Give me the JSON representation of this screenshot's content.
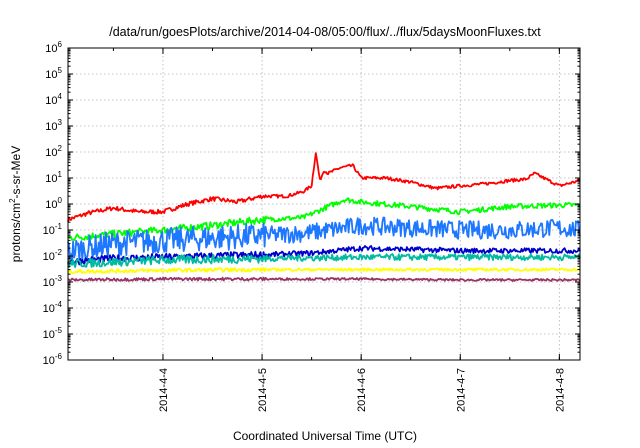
{
  "chart_data": {
    "type": "line",
    "title": "/data/run/goesPlots/archive/2014-04-08/05:00/flux/../flux/5daysMoonFluxes.txt",
    "xlabel": "Coordinated Universal Time (UTC)",
    "ylabel_parts": {
      "prefix": "protons/cm",
      "sup": "2",
      "suffix": "-s-sr-MeV"
    },
    "yscale": "log",
    "ylim_exponents": [
      -6,
      6
    ],
    "ytick_labels": [
      {
        "base": "10",
        "exp": "-6"
      },
      {
        "base": "10",
        "exp": "-5"
      },
      {
        "base": "10",
        "exp": "-4"
      },
      {
        "base": "10",
        "exp": "-3"
      },
      {
        "base": "10",
        "exp": "-2"
      },
      {
        "base": "10",
        "exp": "-1"
      },
      {
        "base": "10",
        "exp": "0"
      },
      {
        "base": "10",
        "exp": "1"
      },
      {
        "base": "10",
        "exp": "2"
      },
      {
        "base": "10",
        "exp": "3"
      },
      {
        "base": "10",
        "exp": "4"
      },
      {
        "base": "10",
        "exp": "5"
      },
      {
        "base": "10",
        "exp": "6"
      }
    ],
    "xlim": [
      "2014-04-03T01:00",
      "2014-04-08T05:00"
    ],
    "x_ticks": [
      "2014-04-04",
      "2014-04-05",
      "2014-04-06",
      "2014-04-07",
      "2014-04-08"
    ],
    "x_tick_labels": [
      "2014-4-4",
      "2014-4-5",
      "2014-4-6",
      "2014-4-7",
      "2014-4-8"
    ],
    "grid": true,
    "legend": "none",
    "series": [
      {
        "color": "#ff0000",
        "noise": 0.06,
        "x": [
          "2014-04-03T01:00",
          "2014-04-03T06:00",
          "2014-04-03T12:00",
          "2014-04-03T18:00",
          "2014-04-04T00:00",
          "2014-04-04T06:00",
          "2014-04-04T12:00",
          "2014-04-04T18:00",
          "2014-04-05T00:00",
          "2014-04-05T06:00",
          "2014-04-05T10:00",
          "2014-04-05T12:00",
          "2014-04-05T13:00",
          "2014-04-05T14:00",
          "2014-04-05T15:00",
          "2014-04-05T16:00",
          "2014-04-05T19:00",
          "2014-04-05T22:00",
          "2014-04-06T00:00",
          "2014-04-06T06:00",
          "2014-04-06T12:00",
          "2014-04-06T18:00",
          "2014-04-07T00:00",
          "2014-04-07T06:00",
          "2014-04-07T12:00",
          "2014-04-07T16:00",
          "2014-04-07T18:00",
          "2014-04-08T00:00",
          "2014-04-08T05:00"
        ],
        "y": [
          0.25,
          0.45,
          0.7,
          0.5,
          0.5,
          1.0,
          1.6,
          1.2,
          2.0,
          2.0,
          3.0,
          5.0,
          100,
          8.0,
          20,
          15,
          25,
          30,
          10,
          10,
          7,
          4,
          5,
          6,
          8,
          9,
          15,
          5,
          8
        ]
      },
      {
        "color": "#00ff00",
        "noise": 0.1,
        "x": [
          "2014-04-03T01:00",
          "2014-04-03T12:00",
          "2014-04-04T00:00",
          "2014-04-04T12:00",
          "2014-04-05T00:00",
          "2014-04-05T10:00",
          "2014-04-05T16:00",
          "2014-04-05T20:00",
          "2014-04-06T00:00",
          "2014-04-06T12:00",
          "2014-04-07T00:00",
          "2014-04-07T12:00",
          "2014-04-08T00:00",
          "2014-04-08T05:00"
        ],
        "y": [
          0.05,
          0.07,
          0.1,
          0.15,
          0.25,
          0.3,
          0.8,
          1.5,
          1.2,
          0.8,
          0.5,
          0.8,
          0.9,
          0.9
        ]
      },
      {
        "color": "#1e78ff",
        "noise": 0.35,
        "x": [
          "2014-04-03T01:00",
          "2014-04-03T12:00",
          "2014-04-04T00:00",
          "2014-04-04T12:00",
          "2014-04-05T00:00",
          "2014-04-05T12:00",
          "2014-04-06T00:00",
          "2014-04-06T12:00",
          "2014-04-07T00:00",
          "2014-04-07T12:00",
          "2014-04-08T00:00",
          "2014-04-08T05:00"
        ],
        "y": [
          0.015,
          0.03,
          0.04,
          0.05,
          0.06,
          0.08,
          0.15,
          0.12,
          0.1,
          0.1,
          0.12,
          0.1
        ]
      },
      {
        "color": "#0000cc",
        "noise": 0.1,
        "x": [
          "2014-04-03T01:00",
          "2014-04-03T12:00",
          "2014-04-04T00:00",
          "2014-04-04T12:00",
          "2014-04-05T00:00",
          "2014-04-05T12:00",
          "2014-04-06T00:00",
          "2014-04-07T00:00",
          "2014-04-08T00:00",
          "2014-04-08T05:00"
        ],
        "y": [
          0.006,
          0.008,
          0.009,
          0.01,
          0.011,
          0.013,
          0.02,
          0.016,
          0.016,
          0.016
        ]
      },
      {
        "color": "#00bba0",
        "noise": 0.12,
        "x": [
          "2014-04-03T01:00",
          "2014-04-04T00:00",
          "2014-04-05T00:00",
          "2014-04-06T00:00",
          "2014-04-07T00:00",
          "2014-04-08T00:00",
          "2014-04-08T05:00"
        ],
        "y": [
          0.005,
          0.007,
          0.008,
          0.009,
          0.009,
          0.009,
          0.009
        ]
      },
      {
        "color": "#ffff00",
        "noise": 0.05,
        "x": [
          "2014-04-03T01:00",
          "2014-04-04T00:00",
          "2014-04-05T00:00",
          "2014-04-06T00:00",
          "2014-04-07T00:00",
          "2014-04-08T00:00",
          "2014-04-08T05:00"
        ],
        "y": [
          0.0025,
          0.0028,
          0.003,
          0.003,
          0.003,
          0.003,
          0.003
        ]
      },
      {
        "color": "#993366",
        "noise": 0.04,
        "x": [
          "2014-04-03T01:00",
          "2014-04-04T00:00",
          "2014-04-05T00:00",
          "2014-04-06T00:00",
          "2014-04-07T00:00",
          "2014-04-08T00:00",
          "2014-04-08T05:00"
        ],
        "y": [
          0.0012,
          0.0013,
          0.0013,
          0.0013,
          0.0012,
          0.0012,
          0.0012
        ]
      }
    ]
  }
}
